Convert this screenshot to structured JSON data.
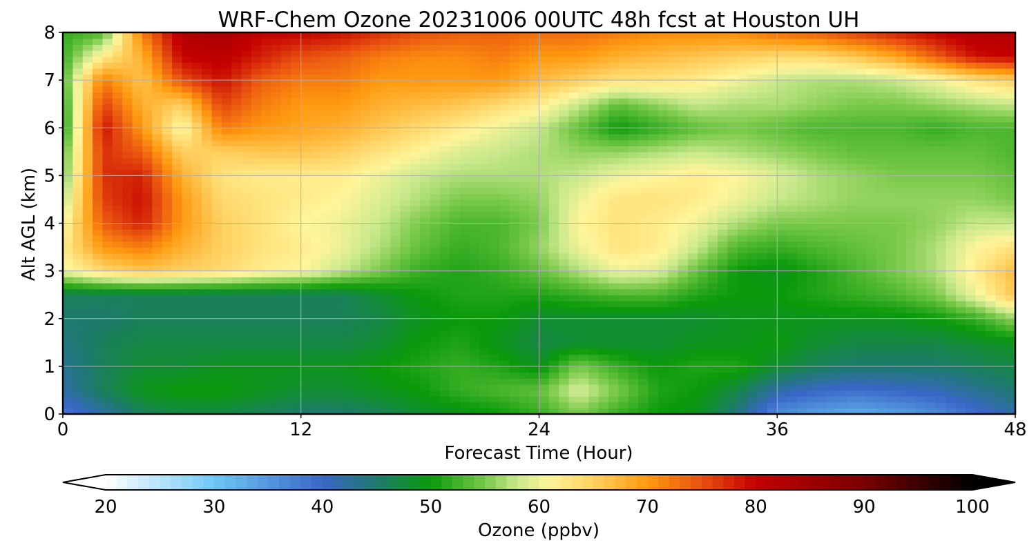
{
  "chart_data": {
    "type": "heatmap",
    "title": "WRF-Chem Ozone  20231006 00UTC 48h fcst at Houston UH",
    "xlabel": "Forecast Time (Hour)",
    "ylabel": "Alt AGL (km)",
    "xlim": [
      0,
      48
    ],
    "ylim": [
      0,
      8
    ],
    "x_ticks": [
      0,
      12,
      24,
      36,
      48
    ],
    "y_ticks": [
      0,
      1,
      2,
      3,
      4,
      5,
      6,
      7,
      8
    ],
    "grid": true,
    "colorbar": {
      "label": "Ozone  (ppbv)",
      "range": [
        20,
        100
      ],
      "ticks": [
        20,
        30,
        40,
        50,
        60,
        70,
        80,
        90,
        100
      ],
      "extend": "both",
      "colormap_stops": [
        {
          "v": 20,
          "c": "#ffffff"
        },
        {
          "v": 30,
          "c": "#6ec8f5"
        },
        {
          "v": 40,
          "c": "#3a66c8"
        },
        {
          "v": 45,
          "c": "#1e7a6e"
        },
        {
          "v": 50,
          "c": "#0a9a0a"
        },
        {
          "v": 55,
          "c": "#79c94a"
        },
        {
          "v": 58,
          "c": "#c9e88c"
        },
        {
          "v": 61,
          "c": "#fff59a"
        },
        {
          "v": 65,
          "c": "#ffd060"
        },
        {
          "v": 70,
          "c": "#ff9a10"
        },
        {
          "v": 75,
          "c": "#e85010"
        },
        {
          "v": 80,
          "c": "#c40000"
        },
        {
          "v": 90,
          "c": "#7a0000"
        },
        {
          "v": 100,
          "c": "#000000"
        }
      ]
    },
    "x_hours": [
      0,
      2,
      4,
      6,
      8,
      10,
      12,
      14,
      16,
      18,
      20,
      22,
      24,
      26,
      28,
      30,
      32,
      34,
      36,
      38,
      40,
      42,
      44,
      46,
      48
    ],
    "y_km": [
      0,
      0.5,
      1,
      1.5,
      2,
      2.5,
      3,
      3.5,
      4,
      4.5,
      5,
      5.5,
      6,
      6.5,
      7,
      7.5,
      8
    ],
    "ozone_ppbv": [
      [
        38,
        42,
        46,
        47,
        47,
        46,
        45,
        45,
        46,
        48,
        49,
        50,
        52,
        55,
        52,
        50,
        49,
        44,
        36,
        34,
        33,
        34,
        36,
        39,
        42
      ],
      [
        42,
        46,
        49,
        50,
        50,
        49,
        48,
        48,
        49,
        50,
        52,
        53,
        54,
        59,
        55,
        51,
        50,
        47,
        42,
        40,
        39,
        40,
        41,
        43,
        45
      ],
      [
        43,
        46,
        48,
        48,
        49,
        49,
        49,
        49,
        50,
        51,
        52,
        51,
        49,
        55,
        52,
        50,
        51,
        51,
        48,
        46,
        45,
        45,
        45,
        46,
        47
      ],
      [
        44,
        46,
        47,
        47,
        47,
        47,
        47,
        47,
        48,
        50,
        51,
        49,
        47,
        48,
        48,
        48,
        49,
        49,
        50,
        48,
        47,
        47,
        47,
        48,
        49
      ],
      [
        45,
        45,
        46,
        46,
        46,
        46,
        46,
        46,
        47,
        49,
        50,
        50,
        48,
        48,
        48,
        48,
        48,
        49,
        49,
        49,
        49,
        49,
        50,
        52,
        56
      ],
      [
        46,
        46,
        46,
        46,
        46,
        46,
        46,
        46,
        48,
        50,
        51,
        51,
        51,
        52,
        53,
        53,
        51,
        50,
        50,
        51,
        52,
        53,
        55,
        60,
        66
      ],
      [
        60,
        64,
        66,
        65,
        64,
        62,
        61,
        58,
        55,
        52,
        51,
        52,
        54,
        57,
        60,
        59,
        54,
        50,
        49,
        51,
        53,
        55,
        57,
        62,
        67
      ],
      [
        62,
        70,
        72,
        68,
        65,
        63,
        62,
        60,
        57,
        54,
        52,
        53,
        56,
        60,
        63,
        62,
        58,
        53,
        52,
        53,
        54,
        55,
        57,
        61,
        63
      ],
      [
        60,
        74,
        78,
        70,
        65,
        63,
        61,
        60,
        58,
        55,
        53,
        53,
        55,
        61,
        63,
        62,
        60,
        57,
        55,
        55,
        55,
        55,
        56,
        58,
        58
      ],
      [
        57,
        76,
        79,
        70,
        64,
        63,
        62,
        61,
        59,
        57,
        55,
        55,
        56,
        60,
        63,
        63,
        62,
        60,
        58,
        57,
        56,
        56,
        56,
        56,
        55
      ],
      [
        54,
        77,
        78,
        68,
        63,
        62,
        62,
        62,
        60,
        58,
        57,
        57,
        57,
        58,
        60,
        61,
        62,
        61,
        59,
        57,
        56,
        55,
        55,
        55,
        54
      ],
      [
        53,
        77,
        74,
        65,
        65,
        66,
        66,
        65,
        63,
        61,
        59,
        58,
        57,
        56,
        56,
        57,
        58,
        57,
        56,
        55,
        54,
        54,
        54,
        54,
        53
      ],
      [
        50,
        79,
        70,
        60,
        72,
        70,
        69,
        68,
        66,
        64,
        62,
        60,
        58,
        54,
        50,
        52,
        54,
        55,
        54,
        53,
        53,
        53,
        52,
        53,
        53
      ],
      [
        51,
        76,
        68,
        65,
        76,
        72,
        70,
        70,
        68,
        67,
        66,
        64,
        62,
        58,
        54,
        56,
        58,
        57,
        57,
        56,
        55,
        55,
        56,
        57,
        58
      ],
      [
        53,
        72,
        66,
        75,
        79,
        74,
        72,
        72,
        70,
        70,
        70,
        70,
        67,
        65,
        63,
        63,
        62,
        60,
        58,
        57,
        57,
        58,
        60,
        63,
        65
      ],
      [
        52,
        62,
        68,
        80,
        81,
        78,
        75,
        74,
        72,
        71,
        71,
        72,
        70,
        70,
        68,
        67,
        66,
        65,
        64,
        64,
        66,
        69,
        74,
        79,
        80
      ],
      [
        52,
        53,
        72,
        82,
        84,
        80,
        80,
        79,
        77,
        75,
        74,
        74,
        73,
        73,
        72,
        71,
        71,
        71,
        73,
        74,
        76,
        78,
        80,
        82,
        82
      ]
    ]
  }
}
